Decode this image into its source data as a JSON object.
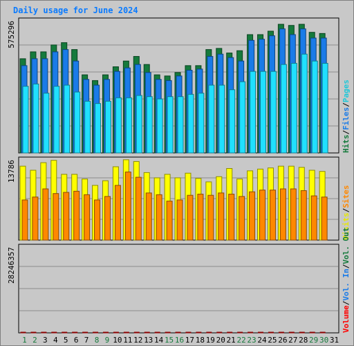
{
  "chart_data": [
    {
      "type": "bar",
      "title": "Daily usage for June 2024",
      "panel": "hits_files_pages",
      "ymax_label": "575296",
      "ylim": [
        0,
        575296
      ],
      "categories": [
        "1",
        "2",
        "3",
        "4",
        "5",
        "6",
        "7",
        "8",
        "9",
        "10",
        "11",
        "12",
        "13",
        "14",
        "15",
        "16",
        "17",
        "18",
        "19",
        "20",
        "21",
        "22",
        "23",
        "24",
        "25",
        "26",
        "27",
        "28",
        "29",
        "30"
      ],
      "series": [
        {
          "name": "Hits",
          "color": "#157a3c",
          "values": [
            410000,
            440000,
            440000,
            470000,
            480000,
            450000,
            340000,
            315000,
            340000,
            375000,
            400000,
            420000,
            385000,
            340000,
            335000,
            350000,
            380000,
            380000,
            450000,
            455000,
            435000,
            445000,
            515000,
            515000,
            530000,
            560000,
            555000,
            560000,
            525000,
            520000
          ]
        },
        {
          "name": "Files",
          "color": "#1a7be8",
          "values": [
            380000,
            410000,
            410000,
            440000,
            450000,
            400000,
            320000,
            295000,
            320000,
            355000,
            370000,
            385000,
            350000,
            320000,
            315000,
            335000,
            360000,
            365000,
            420000,
            430000,
            415000,
            400000,
            490000,
            495000,
            510000,
            540000,
            515000,
            540000,
            500000,
            500000
          ]
        },
        {
          "name": "Pages",
          "color": "#20e0ff",
          "values": [
            290000,
            300000,
            260000,
            290000,
            295000,
            265000,
            225000,
            215000,
            225000,
            240000,
            240000,
            250000,
            245000,
            235000,
            245000,
            245000,
            255000,
            260000,
            295000,
            295000,
            275000,
            310000,
            355000,
            355000,
            355000,
            385000,
            390000,
            430000,
            400000,
            390000
          ]
        }
      ]
    },
    {
      "type": "bar",
      "panel": "visits_sites",
      "ymax_label": "13786",
      "ylim": [
        0,
        13786
      ],
      "categories": [
        "1",
        "2",
        "3",
        "4",
        "5",
        "6",
        "7",
        "8",
        "9",
        "10",
        "11",
        "12",
        "13",
        "14",
        "15",
        "16",
        "17",
        "18",
        "19",
        "20",
        "21",
        "22",
        "23",
        "24",
        "25",
        "26",
        "27",
        "28",
        "29",
        "30"
      ],
      "series": [
        {
          "name": "Visits",
          "color": "#ffff00",
          "values": [
            12700,
            12000,
            13300,
            13700,
            11300,
            11300,
            10500,
            9400,
            10200,
            12600,
            13800,
            13500,
            11600,
            10700,
            11300,
            10700,
            11500,
            10600,
            10000,
            10900,
            12300,
            10500,
            11900,
            12200,
            12400,
            12700,
            12700,
            12500,
            12000,
            11800
          ]
        },
        {
          "name": "Sites",
          "color": "#ff8800",
          "values": [
            6900,
            7400,
            8800,
            8000,
            8200,
            8400,
            7800,
            6900,
            7500,
            9400,
            11700,
            10800,
            8100,
            7800,
            6700,
            6900,
            7700,
            7900,
            7700,
            8100,
            7900,
            7500,
            8300,
            8600,
            8600,
            8800,
            8800,
            8500,
            7600,
            7400
          ]
        }
      ]
    },
    {
      "type": "bar",
      "panel": "volume",
      "ymax_label": "28246357",
      "ylim": [
        0,
        28246357
      ],
      "categories": [
        "1",
        "2",
        "3",
        "4",
        "5",
        "6",
        "7",
        "8",
        "9",
        "10",
        "11",
        "12",
        "13",
        "14",
        "15",
        "16",
        "17",
        "18",
        "19",
        "20",
        "21",
        "22",
        "23",
        "24",
        "25",
        "26",
        "27",
        "28",
        "29",
        "30"
      ],
      "series": [
        {
          "name": "Volume",
          "color": "#ff0000",
          "values": [
            12600,
            12200,
            11800,
            17200,
            16300,
            12300,
            10700,
            10700,
            10700,
            12800,
            15300,
            23500,
            29400,
            26600,
            27000,
            27500,
            25800,
            18400,
            14500,
            19300,
            26300,
            24000,
            22700,
            19300,
            23800,
            23500,
            20000,
            21200,
            24000,
            21800
          ]
        }
      ]
    }
  ],
  "x_axis": {
    "labels": [
      "1",
      "2",
      "3",
      "4",
      "5",
      "6",
      "7",
      "8",
      "9",
      "10",
      "11",
      "12",
      "13",
      "14",
      "15",
      "16",
      "17",
      "18",
      "19",
      "20",
      "21",
      "22",
      "23",
      "24",
      "25",
      "26",
      "27",
      "28",
      "29",
      "30",
      "31"
    ],
    "weekend": [
      1,
      2,
      8,
      9,
      15,
      16,
      22,
      23,
      29,
      30
    ]
  },
  "right_legend": {
    "top": [
      {
        "text": "Hits",
        "color": "#157a3c"
      },
      {
        "text": "/",
        "color": "#000000"
      },
      {
        "text": "Files",
        "color": "#1a7be8"
      },
      {
        "text": "/",
        "color": "#000000"
      },
      {
        "text": "Pages",
        "color": "#20c8d8"
      }
    ],
    "middle": [
      {
        "text": "Visits",
        "color": "#e8e800"
      },
      {
        "text": "/",
        "color": "#000000"
      },
      {
        "text": "Sites",
        "color": "#ff8800"
      }
    ],
    "bottom": [
      {
        "text": "Volume",
        "color": "#ff0000"
      },
      {
        "text": "/",
        "color": "#000000"
      },
      {
        "text": "Vol. In",
        "color": "#1a7be8"
      },
      {
        "text": "/",
        "color": "#000000"
      },
      {
        "text": "Vol. Out",
        "color": "#157a3c"
      }
    ]
  },
  "colors": {
    "weekday_label": "#000000",
    "weekend_label": "#157a3c",
    "panel_bg": "#c8c8c8",
    "grid": "#808080"
  }
}
